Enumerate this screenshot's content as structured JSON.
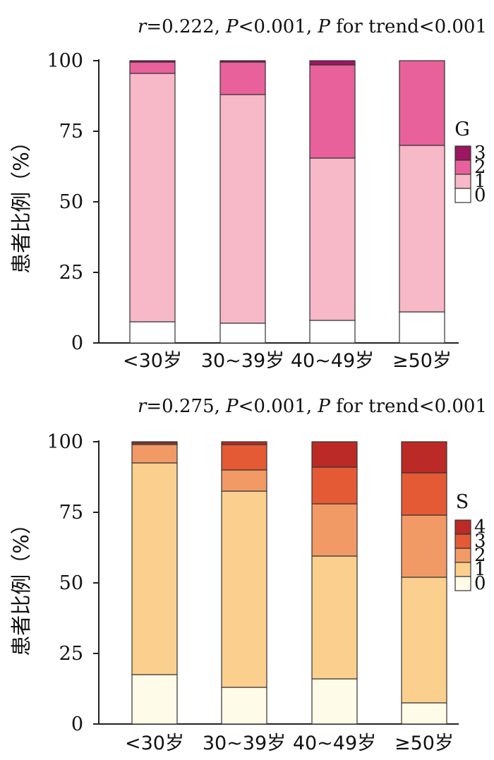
{
  "chart_data": [
    {
      "type": "stacked-bar",
      "stats": {
        "r_label": "r",
        "r_value": "=0.222, ",
        "p_label": "P",
        "p_value": "<0.001, ",
        "p2_label": "P",
        "trend": " for trend<0.001"
      },
      "ylabel": "患者比例（%）",
      "ylim": [
        0,
        100
      ],
      "yticks": [
        "0",
        "25",
        "50",
        "75",
        "100"
      ],
      "categories": [
        "<30岁",
        "30~39岁",
        "40~49岁",
        "≥50岁"
      ],
      "legend_title": "G",
      "series": [
        {
          "name": "0",
          "color": "#ffffff",
          "values": [
            7.5,
            7,
            8,
            11
          ]
        },
        {
          "name": "1",
          "color": "#f7b8c8",
          "values": [
            88,
            81,
            57.5,
            59
          ]
        },
        {
          "name": "2",
          "color": "#e8619a",
          "values": [
            4,
            11.5,
            33,
            30
          ]
        },
        {
          "name": "3",
          "color": "#9c1660",
          "values": [
            0.5,
            0.5,
            1.5,
            0
          ]
        }
      ]
    },
    {
      "type": "stacked-bar",
      "stats": {
        "r_label": "r",
        "r_value": "=0.275, ",
        "p_label": "P",
        "p_value": "<0.001, ",
        "p2_label": "P",
        "trend": " for trend<0.001"
      },
      "ylabel": "患者比例（%）",
      "ylim": [
        0,
        100
      ],
      "yticks": [
        "0",
        "25",
        "50",
        "75",
        "100"
      ],
      "categories": [
        "<30岁",
        "30~39岁",
        "40~49岁",
        "≥50岁"
      ],
      "legend_title": "S",
      "series": [
        {
          "name": "0",
          "color": "#fefbe8",
          "values": [
            17.5,
            13,
            16,
            7.5
          ]
        },
        {
          "name": "1",
          "color": "#fbd08e",
          "values": [
            75,
            69.5,
            43.5,
            44.5
          ]
        },
        {
          "name": "2",
          "color": "#f29a66",
          "values": [
            6.5,
            7.5,
            18.5,
            22
          ]
        },
        {
          "name": "3",
          "color": "#e35a35",
          "values": [
            0.5,
            9,
            13,
            15
          ]
        },
        {
          "name": "4",
          "color": "#bb2a26",
          "values": [
            0.5,
            1,
            9,
            11
          ]
        }
      ]
    }
  ]
}
